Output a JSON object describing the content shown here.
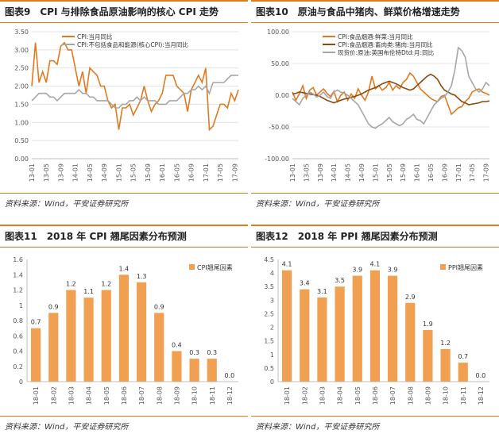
{
  "panels": {
    "p9": {
      "title": "图表9　CPI 与排除食品原油影响的核心 CPI 走势",
      "source": "资料来源：Wind，平安证券研究所"
    },
    "p10": {
      "title": "图表10　原油与食品中猪肉、鲜菜价格增速走势",
      "source": "资料来源：Wind，平安证券研究所"
    },
    "p11": {
      "title": "图表11　2018 年 CPI 翘尾因素分布预测",
      "source": "资料来源：Wind，平安证券研究所"
    },
    "p12": {
      "title": "图表12　2018 年 PPI 翘尾因素分布预测",
      "source": "资料来源：Wind，平安证券研究所"
    }
  },
  "colors": {
    "accent": "#e07a1f",
    "bar": "#f0a050",
    "cpi_line": "#e07a1f",
    "core_line": "#a6a6a6",
    "veg_line": "#e07a1f",
    "pork_line": "#8a4a12",
    "oil_line": "#a6a6a6"
  },
  "chart_data": [
    {
      "id": "p9",
      "type": "line",
      "title": "CPI 与排除食品原油影响的核心 CPI 走势",
      "xticks": [
        "13-01",
        "13-05",
        "13-09",
        "14-01",
        "14-05",
        "14-09",
        "15-01",
        "15-05",
        "15-09",
        "16-01",
        "16-05",
        "16-09",
        "17-01",
        "17-05",
        "17-09"
      ],
      "ylim": [
        0,
        3.5
      ],
      "yticks": [
        "0.00",
        "0.50",
        "1.00",
        "1.50",
        "2.00",
        "2.50",
        "3.00",
        "3.50"
      ],
      "series": [
        {
          "name": "CPI:当月同比",
          "color": "#e07a1f",
          "values": [
            2.0,
            3.2,
            2.1,
            2.4,
            2.1,
            2.7,
            2.7,
            2.6,
            3.1,
            3.2,
            3.0,
            3.0,
            2.5,
            2.0,
            2.4,
            1.8,
            2.5,
            2.4,
            2.3,
            2.0,
            2.0,
            1.6,
            1.4,
            1.5,
            0.8,
            1.4,
            1.4,
            1.5,
            1.2,
            1.4,
            1.6,
            2.0,
            1.6,
            1.3,
            1.5,
            1.6,
            1.8,
            2.3,
            2.3,
            2.3,
            2.0,
            1.9,
            1.8,
            1.3,
            1.9,
            2.1,
            2.3,
            2.1,
            2.5,
            0.8,
            0.9,
            1.2,
            1.5,
            1.5,
            1.4,
            1.8,
            1.6,
            1.9
          ],
          "x_start": "13-01",
          "x_end": "17-10"
        },
        {
          "name": "CPI:不包括食品和能源(核心CPI):当月同比",
          "color": "#a6a6a6",
          "values": [
            1.6,
            1.7,
            1.8,
            1.8,
            1.8,
            1.7,
            1.7,
            1.6,
            1.7,
            1.8,
            1.8,
            1.8,
            1.8,
            1.9,
            1.8,
            1.8,
            1.7,
            1.7,
            1.6,
            1.6,
            1.6,
            1.6,
            1.5,
            1.4,
            1.4,
            1.5,
            1.5,
            1.6,
            1.6,
            1.7,
            1.6,
            1.7,
            1.6,
            1.6,
            1.6,
            1.5,
            1.5,
            1.5,
            1.6,
            1.6,
            1.6,
            1.7,
            1.8,
            1.8,
            1.9,
            1.9,
            2.0,
            1.9,
            2.0,
            1.8,
            2.1,
            2.1,
            2.1,
            2.1,
            2.2,
            2.3,
            2.3,
            2.3
          ],
          "x_start": "13-01",
          "x_end": "17-10"
        }
      ],
      "legend": "top-left"
    },
    {
      "id": "p10",
      "type": "line",
      "title": "原油与食品中猪肉、鲜菜价格增速走势",
      "xticks": [
        "13-01",
        "13-05",
        "13-09",
        "14-01",
        "14-05",
        "14-09",
        "15-01",
        "15-05",
        "15-09",
        "16-01",
        "16-05",
        "16-09",
        "17-01",
        "17-05",
        "17-09"
      ],
      "ylim": [
        -100,
        100
      ],
      "yticks": [
        "-100.00",
        "-50.00",
        "0.00",
        "50.00",
        "100.00"
      ],
      "series": [
        {
          "name": "CPI:食品烟酒:鲜菜:当月同比",
          "color": "#e07a1f",
          "values": [
            5,
            -8,
            2,
            15,
            -5,
            8,
            12,
            0,
            5,
            10,
            3,
            -2,
            6,
            -10,
            0,
            5,
            -8,
            2,
            -5,
            10,
            0,
            -8,
            5,
            30,
            10,
            15,
            8,
            12,
            20,
            8,
            15,
            10,
            20,
            25,
            35,
            30,
            20,
            10,
            5,
            0,
            -5,
            -8,
            -10,
            -2,
            0,
            -15,
            -30,
            -25,
            -20,
            -18,
            -10,
            -5,
            5,
            8,
            10,
            5,
            3,
            0
          ],
          "x_start": "13-01",
          "x_end": "17-10"
        },
        {
          "name": "CPI:食品烟酒:畜肉类:猪肉:当月同比",
          "color": "#8a4a12",
          "values": [
            2,
            3,
            5,
            4,
            3,
            2,
            1,
            0,
            -2,
            -5,
            -8,
            -10,
            -12,
            -10,
            -8,
            -6,
            -5,
            -3,
            -2,
            0,
            2,
            5,
            8,
            10,
            12,
            15,
            18,
            20,
            22,
            20,
            18,
            15,
            12,
            10,
            8,
            10,
            15,
            20,
            25,
            30,
            33,
            30,
            25,
            15,
            8,
            5,
            2,
            0,
            -5,
            -10,
            -12,
            -15,
            -14,
            -13,
            -12,
            -10,
            -10,
            -9
          ],
          "x_start": "13-01",
          "x_end": "17-10"
        },
        {
          "name": "现货价:原油:英国布伦特Dtd:月:同比",
          "color": "#a6a6a6",
          "values": [
            -5,
            -10,
            -15,
            -5,
            0,
            5,
            2,
            -3,
            0,
            5,
            -2,
            -5,
            5,
            8,
            5,
            3,
            0,
            -5,
            -10,
            -15,
            -25,
            -35,
            -45,
            -50,
            -52,
            -48,
            -45,
            -40,
            -35,
            -42,
            -45,
            -48,
            -45,
            -38,
            -35,
            -30,
            -38,
            -40,
            -45,
            -35,
            -25,
            -15,
            -10,
            -5,
            -2,
            5,
            15,
            40,
            75,
            70,
            60,
            30,
            20,
            10,
            5,
            10,
            20,
            15
          ],
          "x_start": "13-01",
          "x_end": "17-10"
        }
      ],
      "legend": "top-left"
    },
    {
      "id": "p11",
      "type": "bar",
      "title": "2018 年 CPI 翘尾因素分布预测",
      "categories": [
        "18-01",
        "18-02",
        "18-03",
        "18-04",
        "18-05",
        "18-06",
        "18-07",
        "18-08",
        "18-09",
        "18-10",
        "18-11",
        "18-12"
      ],
      "values": [
        0.7,
        0.9,
        1.2,
        1.1,
        1.2,
        1.4,
        1.3,
        0.9,
        0.4,
        0.3,
        0.3,
        0.0
      ],
      "value_labels": [
        "0.7",
        "0.9",
        "1.2",
        "1.1",
        "1.2",
        "1.4",
        "1.3",
        "0.9",
        "0.4",
        "0.3",
        "0.3",
        "0.0"
      ],
      "ylim": [
        0,
        1.6
      ],
      "yticks": [
        "0",
        "0.2",
        "0.4",
        "0.6",
        "0.8",
        "1",
        "1.2",
        "1.4",
        "1.6"
      ],
      "series_name": "CPI翘尾因素",
      "legend": "top-right"
    },
    {
      "id": "p12",
      "type": "bar",
      "title": "2018 年 PPI 翘尾因素分布预测",
      "categories": [
        "18-01",
        "18-02",
        "18-03",
        "18-04",
        "18-05",
        "18-06",
        "18-07",
        "18-08",
        "18-09",
        "18-10",
        "18-11",
        "18-12"
      ],
      "values": [
        4.1,
        3.4,
        3.1,
        3.5,
        3.9,
        4.1,
        3.9,
        2.9,
        1.9,
        1.2,
        0.7,
        0.0
      ],
      "value_labels": [
        "4.1",
        "3.4",
        "3.1",
        "3.5",
        "3.9",
        "4.1",
        "3.9",
        "2.9",
        "1.9",
        "1.2",
        "0.7",
        "0.0"
      ],
      "ylim": [
        0,
        4.5
      ],
      "yticks": [
        "0",
        "0.5",
        "1",
        "1.5",
        "2",
        "2.5",
        "3",
        "3.5",
        "4",
        "4.5"
      ],
      "series_name": "PPI翘尾因素",
      "legend": "top-right"
    }
  ]
}
